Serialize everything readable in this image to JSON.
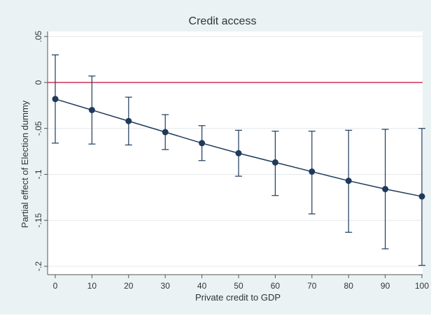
{
  "chart_data": {
    "type": "scatter",
    "title": "Credit access",
    "xlabel": "Private credit to GDP",
    "ylabel": "Partial effect of Election dummy",
    "xlim": [
      0,
      100
    ],
    "ylim": [
      -0.2,
      0.05
    ],
    "xticks": [
      0,
      10,
      20,
      30,
      40,
      50,
      60,
      70,
      80,
      90,
      100
    ],
    "yticks": [
      {
        "value": 0.05,
        "label": ".05"
      },
      {
        "value": 0,
        "label": "0"
      },
      {
        "value": -0.05,
        "label": "-.05"
      },
      {
        "value": -0.1,
        "label": "-.1"
      },
      {
        "value": -0.15,
        "label": "-.15"
      },
      {
        "value": -0.2,
        "label": "-.2"
      }
    ],
    "grid": true,
    "reference_line": {
      "y": 0,
      "color": "#cc3355"
    },
    "series": [
      {
        "color": "#1f3a5a",
        "x": [
          0,
          10,
          20,
          30,
          40,
          50,
          60,
          70,
          80,
          90,
          100
        ],
        "y": [
          -0.018,
          -0.03,
          -0.042,
          -0.054,
          -0.066,
          -0.077,
          -0.087,
          -0.097,
          -0.107,
          -0.116,
          -0.124
        ],
        "ci_low": [
          -0.066,
          -0.067,
          -0.068,
          -0.073,
          -0.085,
          -0.102,
          -0.123,
          -0.143,
          -0.163,
          -0.181,
          -0.199
        ],
        "ci_high": [
          0.03,
          0.007,
          -0.016,
          -0.035,
          -0.047,
          -0.052,
          -0.053,
          -0.053,
          -0.052,
          -0.051,
          -0.05
        ]
      }
    ]
  }
}
